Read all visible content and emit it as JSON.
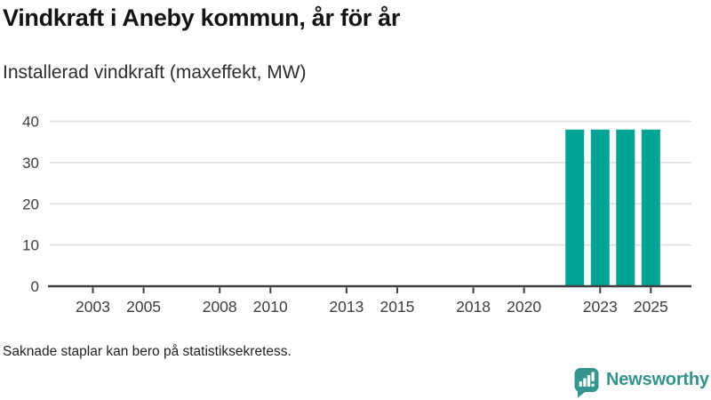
{
  "header": {
    "title": "Vindkraft i Aneby kommun, år för år",
    "subtitle": "Installerad vindkraft (maxeffekt, MW)"
  },
  "chart_data": {
    "type": "bar",
    "title": "Vindkraft i Aneby kommun, år för år",
    "subtitle": "Installerad vindkraft (maxeffekt, MW)",
    "unit": "MW",
    "x": [
      2022,
      2023,
      2024,
      2025
    ],
    "values": [
      38,
      38,
      38,
      38
    ],
    "xticks": [
      2003,
      2005,
      2008,
      2010,
      2013,
      2015,
      2018,
      2020,
      2023,
      2025
    ],
    "yticks": [
      0,
      10,
      20,
      30,
      40
    ],
    "xlim": [
      2001.3,
      2026.6
    ],
    "ylim": [
      0,
      40
    ],
    "grid": true,
    "legend": "none",
    "bar_color": "#00a396"
  },
  "footer": {
    "note": "Saknade staplar kan bero på statistiksekretess."
  },
  "brand": {
    "name": "Newsworthy",
    "color": "#34918b",
    "icon": "newsworthy-speech-bubble-bar-chart-icon"
  },
  "colors": {
    "bar": "#00a396",
    "axis_line": "#3f3f3f",
    "tick_text": "#3d3d3d",
    "grid_line": "#e0e0e0",
    "title_text": "#141414"
  }
}
